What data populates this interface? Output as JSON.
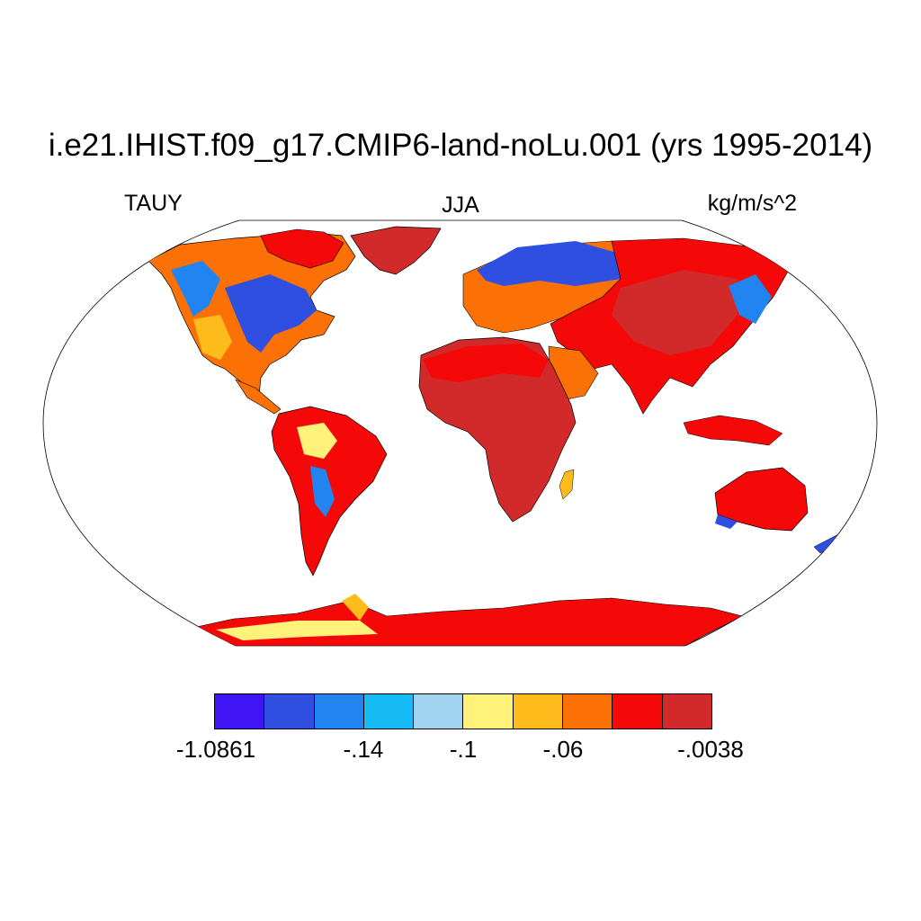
{
  "title": "i.e21.IHIST.f09_g17.CMIP6-land-noLu.001 (yrs 1995-2014)",
  "variable": "TAUY",
  "season": "JJA",
  "units": "kg/m/s^2",
  "projection": "Robinson",
  "colors": {
    "ocean": "#ffffff",
    "coastline": "#000000"
  },
  "colorbar": {
    "colors": [
      "#3f14f5",
      "#2e4fe0",
      "#2284f0",
      "#16baf5",
      "#9fd3f0",
      "#fff27a",
      "#fdbc1c",
      "#fc7105",
      "#f50808",
      "#d22a2a"
    ],
    "labels": [
      "-1.0861",
      "-.14",
      "-.1",
      "-.06",
      "-.0038"
    ]
  }
}
